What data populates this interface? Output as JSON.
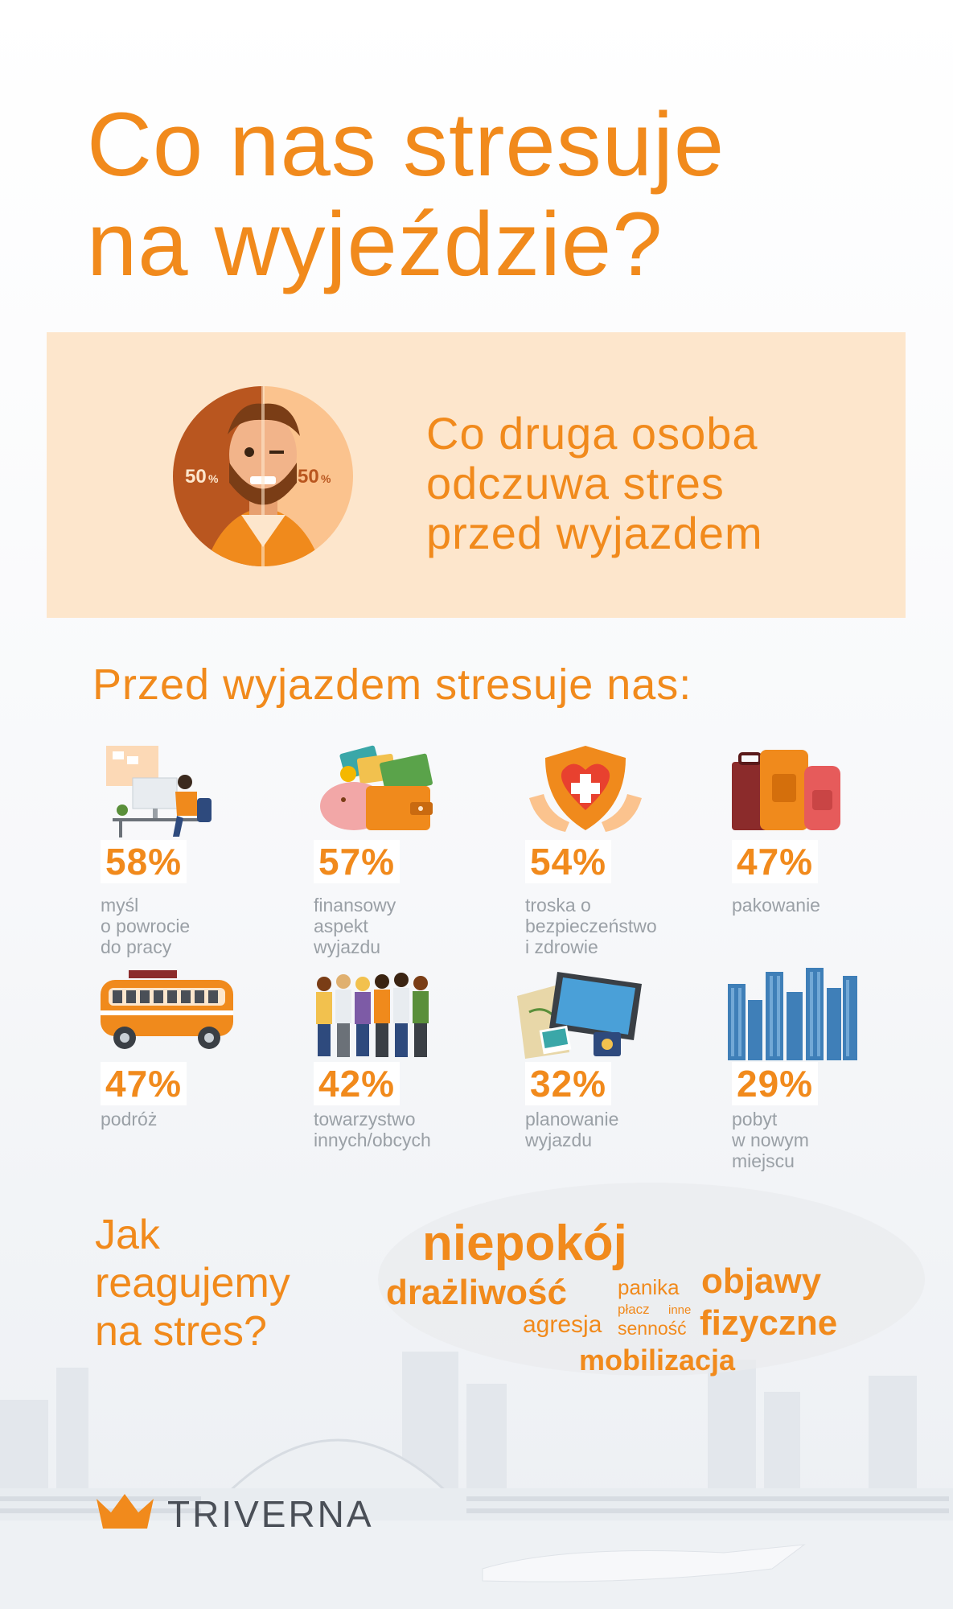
{
  "title": {
    "line1": "Co nas stresuje",
    "line2": "na wyjeździe?"
  },
  "banner": {
    "left_pct": "50",
    "right_pct": "50",
    "pct_sign": "%",
    "line1": "Co druga osoba",
    "line2": "odczuwa stres",
    "line3": "przed wyjazdem"
  },
  "section_title": "Przed wyjazdem stresuje nas:",
  "items": [
    {
      "percent": "58%",
      "icon": "office-worker-icon",
      "lines": [
        "myśl",
        "o powrocie",
        "do pracy"
      ]
    },
    {
      "percent": "57%",
      "icon": "piggy-bank-wallet-icon",
      "lines": [
        "finansowy",
        "aspekt",
        "wyjazdu"
      ]
    },
    {
      "percent": "54%",
      "icon": "health-shield-icon",
      "lines": [
        "troska o",
        "bezpieczeństwo",
        "i zdrowie"
      ]
    },
    {
      "percent": "47%",
      "icon": "luggage-icon",
      "lines": [
        "pakowanie"
      ]
    },
    {
      "percent": "47%",
      "icon": "van-icon",
      "lines": [
        "podróż"
      ]
    },
    {
      "percent": "42%",
      "icon": "people-group-icon",
      "lines": [
        "towarzystwo",
        "innych/obcych"
      ]
    },
    {
      "percent": "32%",
      "icon": "map-laptop-icon",
      "lines": [
        "planowanie",
        "wyjazdu"
      ]
    },
    {
      "percent": "29%",
      "icon": "city-skyline-icon",
      "lines": [
        "pobyt",
        "w nowym",
        "miejscu"
      ]
    }
  ],
  "reaction": {
    "title_lines": [
      "Jak",
      "reagujemy",
      "na stres?"
    ],
    "words": {
      "niepokoj": "niepokój",
      "drazliwosc": "drażliwość",
      "panika": "panika",
      "placz": "płacz",
      "inne": "inne",
      "objawy": "objawy",
      "fizyczne": "fizyczne",
      "agresja": "agresja",
      "sennosc": "senność",
      "mobilizacja": "mobilizacja"
    }
  },
  "brand": {
    "name": "TRIVERNA",
    "accent": "#f18a1c",
    "banner_bg": "#fde6cc"
  }
}
